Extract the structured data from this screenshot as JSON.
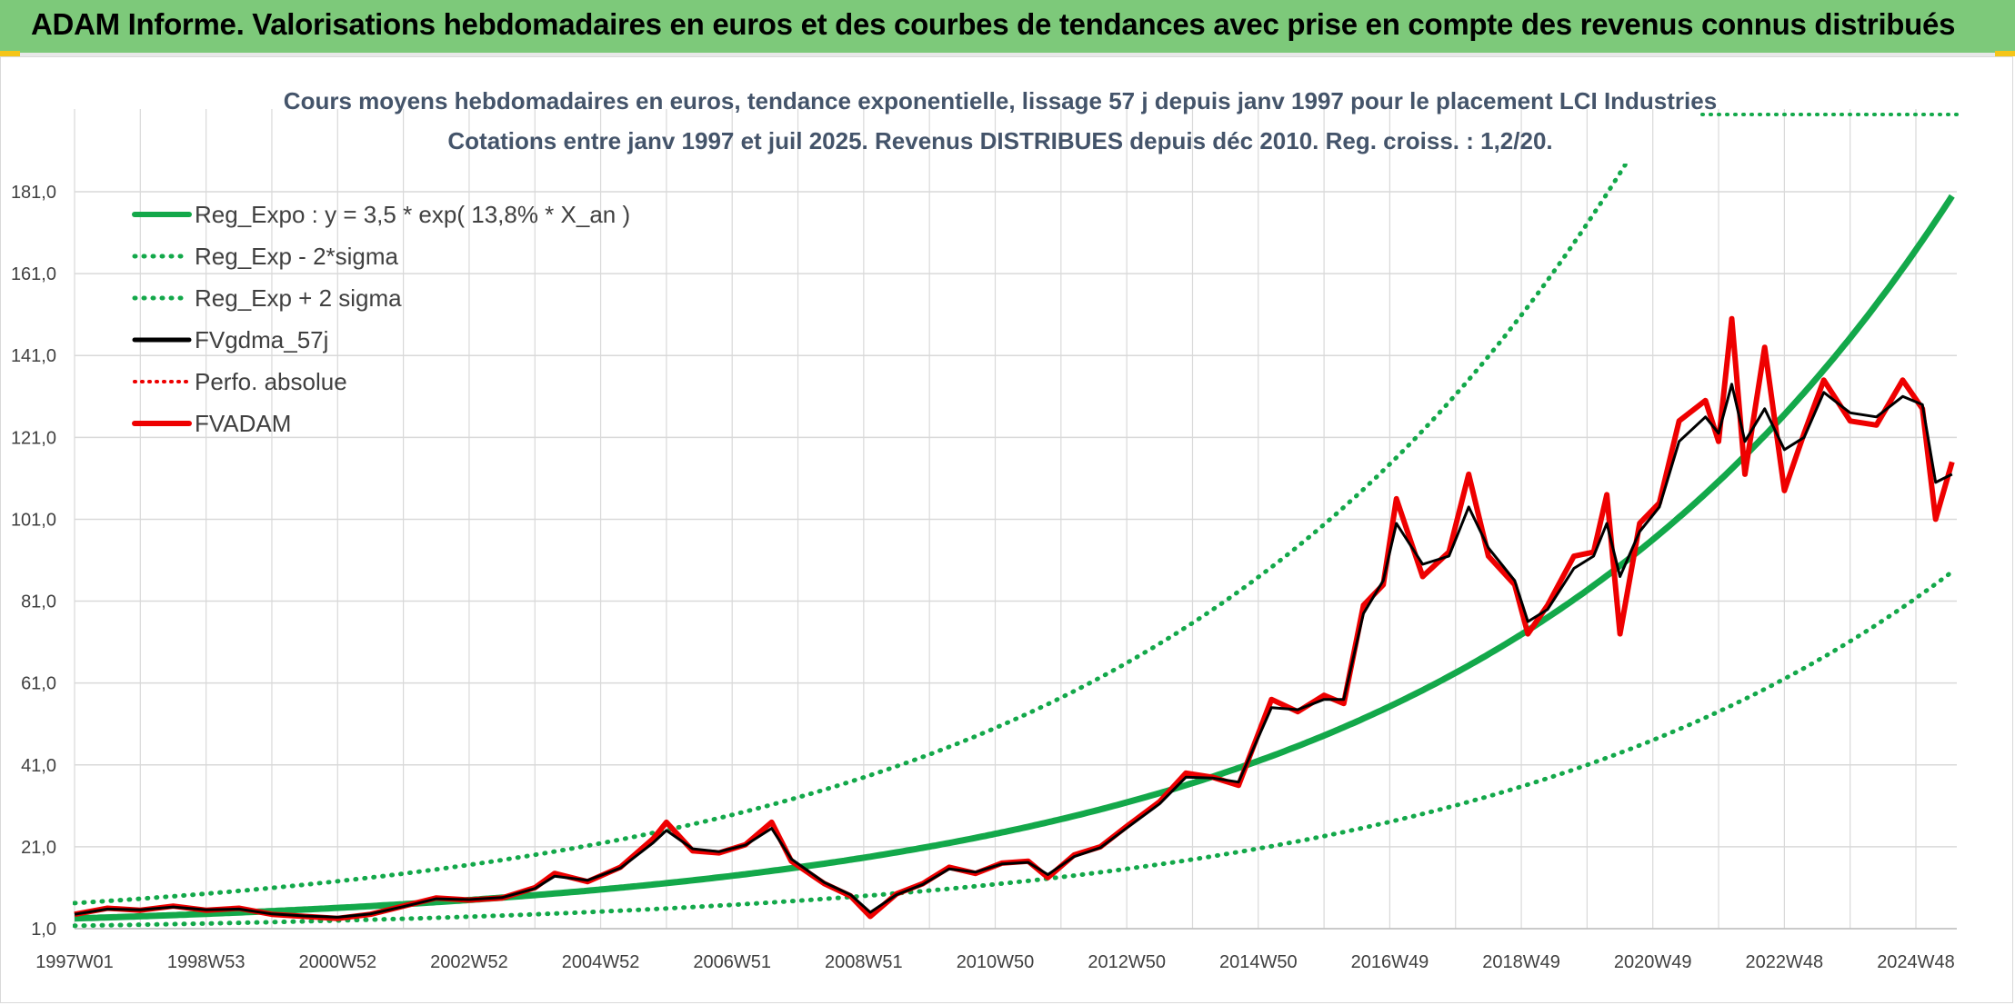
{
  "banner": {
    "text": "ADAM Informe. Valorisations hebdomadaires en euros et des courbes de tendances avec prise en compte des revenus connus distribués"
  },
  "colors": {
    "banner_bg": "#7dc97a",
    "trend_green": "#13a84a",
    "moving_avg": "#000000",
    "series_red": "#ee0000",
    "grid": "#d9d9d9"
  },
  "chart_data": {
    "type": "line",
    "title_lines": [
      "Cours moyens hebdomadaires en euros, tendance exponentielle, lissage 57 j depuis janv 1997 pour le placement LCI Industries",
      "Cotations entre janv 1997 et juil 2025. Revenus DISTRIBUES depuis déc 2010. Reg. croiss. : 1,2/20."
    ],
    "x_range": [
      1997.0,
      2025.55
    ],
    "ylim": [
      1.0,
      201.0
    ],
    "y_ticks": [
      {
        "value": 1.0,
        "label": "1,0"
      },
      {
        "value": 21.0,
        "label": "21,0"
      },
      {
        "value": 41.0,
        "label": "41,0"
      },
      {
        "value": 61.0,
        "label": "61,0"
      },
      {
        "value": 81.0,
        "label": "81,0"
      },
      {
        "value": 101.0,
        "label": "101,0"
      },
      {
        "value": 121.0,
        "label": "121,0"
      },
      {
        "value": 141.0,
        "label": "141,0"
      },
      {
        "value": 161.0,
        "label": "161,0"
      },
      {
        "value": 181.0,
        "label": "181,0"
      }
    ],
    "x_ticks": [
      {
        "value": 1997.0,
        "label": "1997W01"
      },
      {
        "value": 1999.0,
        "label": "1998W53"
      },
      {
        "value": 2001.0,
        "label": "2000W52"
      },
      {
        "value": 2003.0,
        "label": "2002W52"
      },
      {
        "value": 2005.0,
        "label": "2004W52"
      },
      {
        "value": 2007.0,
        "label": "2006W51"
      },
      {
        "value": 2009.0,
        "label": "2008W51"
      },
      {
        "value": 2011.0,
        "label": "2010W50"
      },
      {
        "value": 2013.0,
        "label": "2012W50"
      },
      {
        "value": 2015.0,
        "label": "2014W50"
      },
      {
        "value": 2017.0,
        "label": "2016W49"
      },
      {
        "value": 2019.0,
        "label": "2018W49"
      },
      {
        "value": 2021.0,
        "label": "2020W49"
      },
      {
        "value": 2023.0,
        "label": "2022W48"
      },
      {
        "value": 2025.0,
        "label": "2024W48"
      }
    ],
    "grid": true,
    "legend_position": "top-left",
    "legend": [
      {
        "name": "Reg_Expo : y = 3,5 * exp( 13,8% *  X_an )",
        "style": "solid-green"
      },
      {
        "name": "Reg_Exp - 2*sigma",
        "style": "dotted-green"
      },
      {
        "name": "Reg_Exp + 2 sigma",
        "style": "dotted-green"
      },
      {
        "name": "FVgdma_57j",
        "style": "solid-black"
      },
      {
        "name": "Perfo. absolue",
        "style": "dotted-red"
      },
      {
        "name": "FVADAM",
        "style": "solid-red"
      }
    ],
    "regression": {
      "a": 3.5,
      "rate": 0.138,
      "x0": 1997.0
    },
    "lower_band_factor": 0.49,
    "upper_band_factor": 2.07,
    "fvadam": [
      [
        1997.0,
        4.5
      ],
      [
        1997.5,
        6.0
      ],
      [
        1998.0,
        5.5
      ],
      [
        1998.5,
        6.5
      ],
      [
        1999.0,
        5.5
      ],
      [
        1999.5,
        6.0
      ],
      [
        2000.0,
        4.5
      ],
      [
        2000.5,
        4.0
      ],
      [
        2001.0,
        3.5
      ],
      [
        2001.5,
        4.5
      ],
      [
        2002.0,
        6.5
      ],
      [
        2002.5,
        8.5
      ],
      [
        2003.0,
        8.0
      ],
      [
        2003.5,
        8.5
      ],
      [
        2004.0,
        11.0
      ],
      [
        2004.3,
        14.5
      ],
      [
        2004.8,
        12.5
      ],
      [
        2005.3,
        16.0
      ],
      [
        2005.8,
        23.0
      ],
      [
        2006.0,
        27.0
      ],
      [
        2006.4,
        20.0
      ],
      [
        2006.8,
        19.5
      ],
      [
        2007.2,
        21.5
      ],
      [
        2007.6,
        27.0
      ],
      [
        2007.9,
        17.5
      ],
      [
        2008.4,
        12.0
      ],
      [
        2008.8,
        9.0
      ],
      [
        2009.1,
        4.0
      ],
      [
        2009.5,
        9.5
      ],
      [
        2009.9,
        12.0
      ],
      [
        2010.3,
        16.0
      ],
      [
        2010.7,
        14.5
      ],
      [
        2011.1,
        17.0
      ],
      [
        2011.5,
        17.5
      ],
      [
        2011.8,
        13.5
      ],
      [
        2012.2,
        19.0
      ],
      [
        2012.6,
        21.0
      ],
      [
        2013.0,
        26.0
      ],
      [
        2013.5,
        32.0
      ],
      [
        2013.9,
        39.0
      ],
      [
        2014.3,
        38.0
      ],
      [
        2014.7,
        36.0
      ],
      [
        2015.2,
        57.0
      ],
      [
        2015.6,
        54.0
      ],
      [
        2016.0,
        58.0
      ],
      [
        2016.3,
        56.0
      ],
      [
        2016.6,
        80.0
      ],
      [
        2016.9,
        85.0
      ],
      [
        2017.1,
        106.0
      ],
      [
        2017.5,
        87.0
      ],
      [
        2017.9,
        93.0
      ],
      [
        2018.2,
        112.0
      ],
      [
        2018.5,
        92.0
      ],
      [
        2018.9,
        85.0
      ],
      [
        2019.1,
        73.0
      ],
      [
        2019.4,
        80.0
      ],
      [
        2019.8,
        92.0
      ],
      [
        2020.1,
        93.0
      ],
      [
        2020.3,
        107.0
      ],
      [
        2020.5,
        73.0
      ],
      [
        2020.8,
        100.0
      ],
      [
        2021.1,
        105.0
      ],
      [
        2021.4,
        125.0
      ],
      [
        2021.8,
        130.0
      ],
      [
        2022.0,
        120.0
      ],
      [
        2022.2,
        150.0
      ],
      [
        2022.4,
        112.0
      ],
      [
        2022.7,
        143.0
      ],
      [
        2023.0,
        108.0
      ],
      [
        2023.3,
        122.0
      ],
      [
        2023.6,
        135.0
      ],
      [
        2024.0,
        125.0
      ],
      [
        2024.4,
        124.0
      ],
      [
        2024.8,
        135.0
      ],
      [
        2025.1,
        128.0
      ],
      [
        2025.3,
        101.0
      ],
      [
        2025.55,
        115.0
      ]
    ],
    "fvgdma_57j": [
      [
        1997.0,
        4.5
      ],
      [
        1997.5,
        5.8
      ],
      [
        1998.0,
        5.6
      ],
      [
        1998.5,
        6.3
      ],
      [
        1999.0,
        5.6
      ],
      [
        1999.5,
        5.8
      ],
      [
        2000.0,
        4.6
      ],
      [
        2000.5,
        4.1
      ],
      [
        2001.0,
        3.8
      ],
      [
        2001.5,
        4.6
      ],
      [
        2002.0,
        6.4
      ],
      [
        2002.5,
        8.3
      ],
      [
        2003.0,
        8.1
      ],
      [
        2003.5,
        8.6
      ],
      [
        2004.0,
        10.8
      ],
      [
        2004.3,
        13.8
      ],
      [
        2004.8,
        12.8
      ],
      [
        2005.3,
        15.8
      ],
      [
        2005.8,
        22.0
      ],
      [
        2006.0,
        25.0
      ],
      [
        2006.4,
        20.5
      ],
      [
        2006.8,
        19.8
      ],
      [
        2007.2,
        21.4
      ],
      [
        2007.6,
        25.5
      ],
      [
        2007.9,
        18.0
      ],
      [
        2008.4,
        12.3
      ],
      [
        2008.8,
        9.3
      ],
      [
        2009.1,
        5.0
      ],
      [
        2009.5,
        9.3
      ],
      [
        2009.9,
        11.8
      ],
      [
        2010.3,
        15.6
      ],
      [
        2010.7,
        14.8
      ],
      [
        2011.1,
        16.8
      ],
      [
        2011.5,
        17.2
      ],
      [
        2011.8,
        14.2
      ],
      [
        2012.2,
        18.6
      ],
      [
        2012.6,
        20.8
      ],
      [
        2013.0,
        25.6
      ],
      [
        2013.5,
        31.5
      ],
      [
        2013.9,
        38.0
      ],
      [
        2014.3,
        37.8
      ],
      [
        2014.7,
        36.8
      ],
      [
        2015.2,
        55.0
      ],
      [
        2015.6,
        54.5
      ],
      [
        2016.0,
        57.0
      ],
      [
        2016.3,
        57.0
      ],
      [
        2016.6,
        78.0
      ],
      [
        2016.9,
        86.0
      ],
      [
        2017.1,
        100.0
      ],
      [
        2017.5,
        90.0
      ],
      [
        2017.9,
        92.0
      ],
      [
        2018.2,
        104.0
      ],
      [
        2018.5,
        94.0
      ],
      [
        2018.9,
        86.0
      ],
      [
        2019.1,
        76.0
      ],
      [
        2019.4,
        79.0
      ],
      [
        2019.8,
        89.0
      ],
      [
        2020.1,
        92.0
      ],
      [
        2020.3,
        100.0
      ],
      [
        2020.5,
        87.0
      ],
      [
        2020.8,
        98.0
      ],
      [
        2021.1,
        104.0
      ],
      [
        2021.4,
        120.0
      ],
      [
        2021.8,
        126.0
      ],
      [
        2022.0,
        122.0
      ],
      [
        2022.2,
        134.0
      ],
      [
        2022.4,
        120.0
      ],
      [
        2022.7,
        128.0
      ],
      [
        2023.0,
        118.0
      ],
      [
        2023.3,
        121.0
      ],
      [
        2023.6,
        132.0
      ],
      [
        2024.0,
        127.0
      ],
      [
        2024.4,
        126.0
      ],
      [
        2024.8,
        131.0
      ],
      [
        2025.1,
        129.0
      ],
      [
        2025.3,
        110.0
      ],
      [
        2025.55,
        112.0
      ]
    ]
  }
}
